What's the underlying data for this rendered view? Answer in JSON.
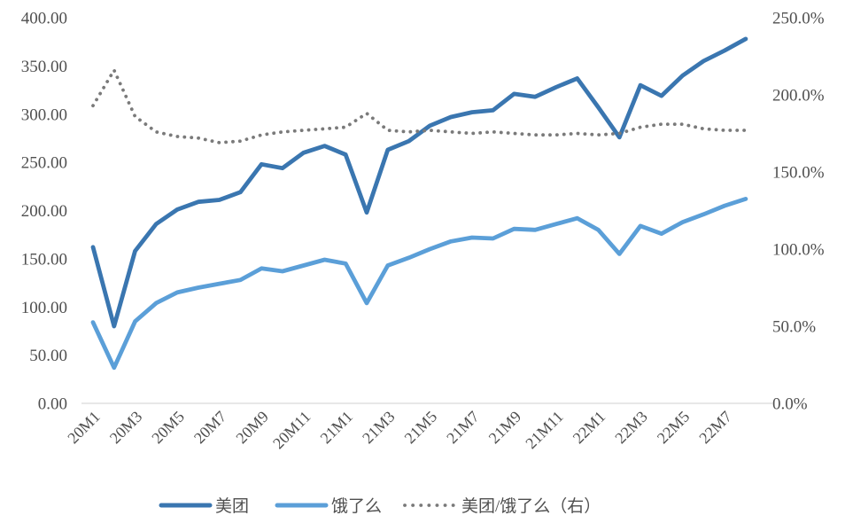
{
  "chart_data": {
    "type": "line",
    "title": "",
    "x": [
      "20M1",
      "20M2",
      "20M3",
      "20M4",
      "20M5",
      "20M6",
      "20M7",
      "20M8",
      "20M9",
      "20M10",
      "20M11",
      "20M12",
      "21M1",
      "21M2",
      "21M3",
      "21M4",
      "21M5",
      "21M6",
      "21M7",
      "21M8",
      "21M9",
      "21M10",
      "21M11",
      "21M12",
      "22M1",
      "22M2",
      "22M3",
      "22M4",
      "22M5",
      "22M6",
      "22M7",
      "22M8"
    ],
    "x_tick_labels": [
      "20M1",
      "20M3",
      "20M5",
      "20M7",
      "20M9",
      "20M11",
      "21M1",
      "21M3",
      "21M5",
      "21M7",
      "21M9",
      "21M11",
      "22M1",
      "22M3",
      "22M5",
      "22M7"
    ],
    "series": [
      {
        "name": "美团",
        "axis": "left",
        "style": "solid",
        "color": "#3A76B0",
        "values": [
          162,
          80,
          158,
          186,
          201,
          209,
          211,
          219,
          248,
          244,
          260,
          267,
          258,
          198,
          263,
          272,
          288,
          297,
          302,
          304,
          321,
          318,
          328,
          337,
          307,
          276,
          330,
          319,
          340,
          355,
          366,
          378
        ]
      },
      {
        "name": "饿了么",
        "axis": "left",
        "style": "solid",
        "color": "#5B9FD8",
        "values": [
          84,
          37,
          85,
          104,
          115,
          120,
          124,
          128,
          140,
          137,
          143,
          149,
          145,
          104,
          143,
          151,
          160,
          168,
          172,
          171,
          181,
          180,
          186,
          192,
          180,
          155,
          184,
          176,
          188,
          196,
          205,
          212
        ]
      },
      {
        "name": "美团/饿了么（右）",
        "axis": "right",
        "style": "dotted",
        "color": "#7A7A7A",
        "values": [
          193,
          216,
          186,
          176,
          173,
          172,
          169,
          170,
          174,
          176,
          177,
          178,
          179,
          188,
          177,
          176,
          177,
          176,
          175,
          176,
          175,
          174,
          174,
          175,
          174,
          175,
          179,
          181,
          181,
          178,
          177,
          177
        ]
      }
    ],
    "left_axis": {
      "min": 0,
      "max": 400,
      "step": 50,
      "tick_labels": [
        "0.00",
        "50.00",
        "100.00",
        "150.00",
        "200.00",
        "250.00",
        "300.00",
        "350.00",
        "400.00"
      ]
    },
    "right_axis": {
      "min": 0,
      "max": 250,
      "step": 50,
      "tick_labels": [
        "0.0%",
        "50.0%",
        "100.0%",
        "150.0%",
        "200.0%",
        "250.0%"
      ]
    },
    "legend_position": "bottom",
    "grid": false,
    "text_color": "#4F4F4F",
    "axis_line_color": "#D9D9D9"
  }
}
